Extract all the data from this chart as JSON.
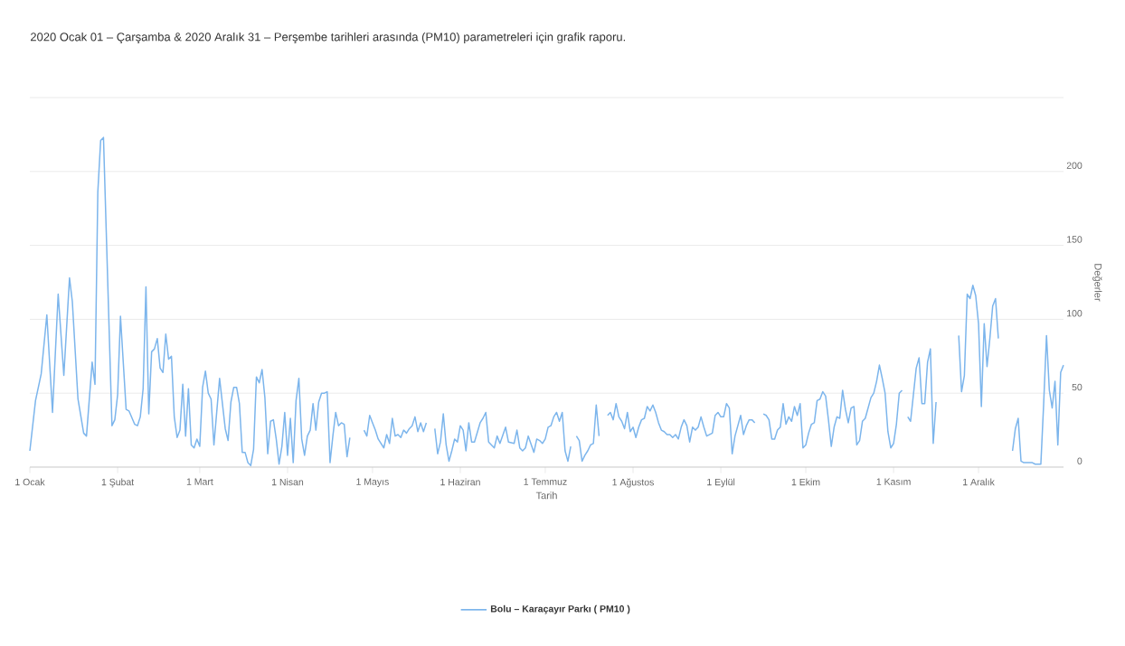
{
  "chart_data": {
    "type": "line",
    "title": "2020 Ocak 01 – Çarşamba & 2020 Aralık 31 – Perşembe tarihleri arasında (PM10) parametreleri için grafik raporu.",
    "xlabel": "Tarih",
    "ylabel": "Değerler",
    "x": [
      "2020-01-01",
      "2020-01-03",
      "2020-01-05",
      "2020-01-07",
      "2020-01-09",
      "2020-01-11",
      "2020-01-13",
      "2020-01-15",
      "2020-01-16",
      "2020-01-18",
      "2020-01-20",
      "2020-01-21",
      "2020-01-23",
      "2020-01-24",
      "2020-01-25",
      "2020-01-26",
      "2020-01-27",
      "2020-01-30",
      "2020-01-31",
      "2020-02-01",
      "2020-02-02",
      "2020-02-04",
      "2020-02-05",
      "2020-02-07",
      "2020-02-08",
      "2020-02-09",
      "2020-02-10",
      "2020-02-11",
      "2020-02-12",
      "2020-02-13",
      "2020-02-14",
      "2020-02-15",
      "2020-02-16",
      "2020-02-17",
      "2020-02-18",
      "2020-02-19",
      "2020-02-20",
      "2020-02-21",
      "2020-02-22",
      "2020-02-23",
      "2020-02-24",
      "2020-02-25",
      "2020-02-26",
      "2020-02-27",
      "2020-02-28",
      "2020-02-29",
      "2020-03-01",
      "2020-03-02",
      "2020-03-03",
      "2020-03-04",
      "2020-03-05",
      "2020-03-06",
      "2020-03-08",
      "2020-03-10",
      "2020-03-11",
      "2020-03-12",
      "2020-03-13",
      "2020-03-14",
      "2020-03-15",
      "2020-03-16",
      "2020-03-17",
      "2020-03-18",
      "2020-03-19",
      "2020-03-20",
      "2020-03-21",
      "2020-03-22",
      "2020-03-23",
      "2020-03-24",
      "2020-03-25",
      "2020-03-26",
      "2020-03-27",
      "2020-03-28",
      "2020-03-29",
      "2020-03-30",
      "2020-03-31",
      "2020-04-01",
      "2020-04-02",
      "2020-04-03",
      "2020-04-04",
      "2020-04-05",
      "2020-04-06",
      "2020-04-07",
      "2020-04-08",
      "2020-04-09",
      "2020-04-10",
      "2020-04-11",
      "2020-04-12",
      "2020-04-13",
      "2020-04-14",
      "2020-04-15",
      "2020-04-16",
      "2020-04-17",
      "2020-04-18",
      "2020-04-19",
      "2020-04-20",
      "2020-04-21",
      "2020-04-22",
      "2020-04-23",
      "2020-04-25",
      "2020-04-28",
      "2020-04-29",
      "2020-04-30",
      "2020-05-01",
      "2020-05-02",
      "2020-05-03",
      "2020-05-05",
      "2020-05-06",
      "2020-05-07",
      "2020-05-08",
      "2020-05-09",
      "2020-05-10",
      "2020-05-11",
      "2020-05-12",
      "2020-05-13",
      "2020-05-14",
      "2020-05-15",
      "2020-05-16",
      "2020-05-17",
      "2020-05-18",
      "2020-05-19",
      "2020-05-20",
      "2020-05-22",
      "2020-05-23",
      "2020-05-24",
      "2020-05-25",
      "2020-05-26",
      "2020-05-27",
      "2020-05-28",
      "2020-05-29",
      "2020-05-30",
      "2020-05-31",
      "2020-06-01",
      "2020-06-02",
      "2020-06-03",
      "2020-06-04",
      "2020-06-05",
      "2020-06-06",
      "2020-06-08",
      "2020-06-09",
      "2020-06-10",
      "2020-06-11",
      "2020-06-12",
      "2020-06-13",
      "2020-06-14",
      "2020-06-15",
      "2020-06-17",
      "2020-06-18",
      "2020-06-20",
      "2020-06-21",
      "2020-06-22",
      "2020-06-23",
      "2020-06-24",
      "2020-06-25",
      "2020-06-27",
      "2020-06-28",
      "2020-06-29",
      "2020-06-30",
      "2020-07-01",
      "2020-07-02",
      "2020-07-03",
      "2020-07-04",
      "2020-07-05",
      "2020-07-06",
      "2020-07-07",
      "2020-07-08",
      "2020-07-09",
      "2020-07-10",
      "2020-07-11",
      "2020-07-12",
      "2020-07-13",
      "2020-07-14",
      "2020-07-15",
      "2020-07-16",
      "2020-07-17",
      "2020-07-18",
      "2020-07-19",
      "2020-07-20",
      "2020-07-21",
      "2020-07-23",
      "2020-07-24",
      "2020-07-25",
      "2020-07-26",
      "2020-07-27",
      "2020-07-28",
      "2020-07-29",
      "2020-07-30",
      "2020-07-31",
      "2020-08-01",
      "2020-08-02",
      "2020-08-03",
      "2020-08-04",
      "2020-08-05",
      "2020-08-06",
      "2020-08-07",
      "2020-08-08",
      "2020-08-09",
      "2020-08-10",
      "2020-08-11",
      "2020-08-12",
      "2020-08-13",
      "2020-08-14",
      "2020-08-15",
      "2020-08-16",
      "2020-08-17",
      "2020-08-18",
      "2020-08-19",
      "2020-08-20",
      "2020-08-21",
      "2020-08-22",
      "2020-08-23",
      "2020-08-24",
      "2020-08-25",
      "2020-08-26",
      "2020-08-27",
      "2020-08-29",
      "2020-08-30",
      "2020-08-31",
      "2020-09-01",
      "2020-09-02",
      "2020-09-03",
      "2020-09-04",
      "2020-09-05",
      "2020-09-06",
      "2020-09-08",
      "2020-09-09",
      "2020-09-10",
      "2020-09-11",
      "2020-09-12",
      "2020-09-13",
      "2020-09-14",
      "2020-09-16",
      "2020-09-17",
      "2020-09-18",
      "2020-09-19",
      "2020-09-20",
      "2020-09-21",
      "2020-09-22",
      "2020-09-23",
      "2020-09-24",
      "2020-09-25",
      "2020-09-26",
      "2020-09-27",
      "2020-09-28",
      "2020-09-29",
      "2020-09-30",
      "2020-10-01",
      "2020-10-02",
      "2020-10-03",
      "2020-10-04",
      "2020-10-05",
      "2020-10-06",
      "2020-10-07",
      "2020-10-08",
      "2020-10-09",
      "2020-10-10",
      "2020-10-11",
      "2020-10-12",
      "2020-10-13",
      "2020-10-14",
      "2020-10-15",
      "2020-10-16",
      "2020-10-17",
      "2020-10-18",
      "2020-10-19",
      "2020-10-20",
      "2020-10-21",
      "2020-10-22",
      "2020-10-24",
      "2020-10-25",
      "2020-10-26",
      "2020-10-27",
      "2020-10-28",
      "2020-10-29",
      "2020-10-30",
      "2020-10-31",
      "2020-11-01",
      "2020-11-02",
      "2020-11-03",
      "2020-11-04",
      "2020-11-05",
      "2020-11-06",
      "2020-11-07",
      "2020-11-08",
      "2020-11-09",
      "2020-11-10",
      "2020-11-11",
      "2020-11-12",
      "2020-11-13",
      "2020-11-14",
      "2020-11-15",
      "2020-11-16",
      "2020-11-17",
      "2020-11-24",
      "2020-11-25",
      "2020-11-26",
      "2020-11-27",
      "2020-11-28",
      "2020-11-29",
      "2020-11-30",
      "2020-12-01",
      "2020-12-02",
      "2020-12-03",
      "2020-12-04",
      "2020-12-05",
      "2020-12-06",
      "2020-12-07",
      "2020-12-08",
      "2020-12-09",
      "2020-12-13",
      "2020-12-14",
      "2020-12-15",
      "2020-12-16",
      "2020-12-17",
      "2020-12-18",
      "2020-12-19",
      "2020-12-20",
      "2020-12-21",
      "2020-12-22",
      "2020-12-23",
      "2020-12-24",
      "2020-12-25",
      "2020-12-26",
      "2020-12-27",
      "2020-12-28",
      "2020-12-29",
      "2020-12-30",
      "2020-12-31"
    ],
    "series": [
      {
        "name": "Bolu – Karaçayır Parkı ( PM10 )",
        "color": "#7cb5ec",
        "values": [
          11,
          45,
          63,
          103,
          37,
          117,
          62,
          128,
          112,
          46,
          23,
          21,
          71,
          56,
          186,
          221,
          223,
          28,
          32,
          49,
          102,
          39,
          38,
          29,
          28,
          34,
          53,
          122,
          36,
          78,
          80,
          87,
          67,
          64,
          90,
          73,
          75,
          34,
          20,
          25,
          56,
          21,
          53,
          15,
          13,
          19,
          14,
          54,
          65,
          50,
          46,
          15,
          60,
          26,
          18,
          44,
          54,
          54,
          43,
          10,
          10,
          3,
          1,
          12,
          61,
          57,
          66,
          47,
          9,
          31,
          32,
          19,
          2,
          14,
          37,
          8,
          33,
          3,
          45,
          60,
          19,
          8,
          21,
          25,
          43,
          25,
          44,
          50,
          50,
          51,
          3,
          21,
          37,
          28,
          30,
          29,
          7,
          20,
          null,
          25,
          21,
          35,
          30,
          25,
          19,
          13,
          22,
          16,
          33,
          21,
          22,
          20,
          25,
          23,
          26,
          28,
          34,
          24,
          30,
          24,
          30,
          null,
          26,
          9,
          17,
          36,
          15,
          4,
          11,
          19,
          17,
          28,
          25,
          11,
          30,
          17,
          17,
          30,
          33,
          37,
          17,
          15,
          13,
          21,
          16,
          27,
          17,
          16,
          25,
          13,
          11,
          13,
          21,
          10,
          19,
          18,
          16,
          19,
          27,
          28,
          34,
          37,
          31,
          37,
          11,
          4,
          14,
          null,
          21,
          18,
          4,
          8,
          11,
          15,
          16,
          42,
          21,
          null,
          35,
          37,
          32,
          43,
          34,
          31,
          26,
          37,
          24,
          27,
          20,
          27,
          32,
          33,
          41,
          38,
          42,
          37,
          30,
          25,
          24,
          22,
          22,
          20,
          22,
          19,
          27,
          32,
          28,
          17,
          27,
          25,
          27,
          34,
          27,
          21,
          23,
          35,
          37,
          34,
          34,
          43,
          40,
          9,
          21,
          35,
          22,
          28,
          32,
          32,
          30,
          null,
          36,
          35,
          32,
          19,
          19,
          25,
          27,
          43,
          29,
          34,
          31,
          41,
          35,
          43,
          13,
          15,
          23,
          29,
          30,
          45,
          46,
          51,
          48,
          32,
          14,
          27,
          34,
          33,
          52,
          39,
          30,
          40,
          41,
          15,
          18,
          31,
          33,
          47,
          50,
          58,
          69,
          60,
          50,
          24,
          13,
          16,
          29,
          50,
          52,
          null,
          34,
          31,
          49,
          67,
          74,
          43,
          43,
          71,
          80,
          16,
          44,
          null,
          89,
          51,
          62,
          117,
          114,
          123,
          116,
          97,
          41,
          97,
          68,
          87,
          109,
          114,
          87,
          null,
          11,
          26,
          33,
          4,
          3,
          3,
          3,
          3,
          2,
          2,
          2,
          43,
          89,
          52,
          40,
          58,
          15,
          64,
          69
        ]
      }
    ],
    "xlim": [
      "2020-01-01",
      "2020-12-31"
    ],
    "xticks": [
      {
        "value": "2020-01-01",
        "label": "1 Ocak"
      },
      {
        "value": "2020-02-01",
        "label": "1 Şubat"
      },
      {
        "value": "2020-03-01",
        "label": "1 Mart"
      },
      {
        "value": "2020-04-01",
        "label": "1 Nisan"
      },
      {
        "value": "2020-05-01",
        "label": "1 Mayıs"
      },
      {
        "value": "2020-06-01",
        "label": "1 Haziran"
      },
      {
        "value": "2020-07-01",
        "label": "1 Temmuz"
      },
      {
        "value": "2020-08-01",
        "label": "1 Ağustos"
      },
      {
        "value": "2020-09-01",
        "label": "1 Eylül"
      },
      {
        "value": "2020-10-01",
        "label": "1 Ekim"
      },
      {
        "value": "2020-11-01",
        "label": "1 Kasım"
      },
      {
        "value": "2020-12-01",
        "label": "1 Aralık"
      }
    ],
    "ylim": [
      0,
      250
    ],
    "yticks": [
      0,
      50,
      100,
      150,
      200,
      {
        "value": 250,
        "label": null
      }
    ],
    "grid": "y",
    "legend": "bottom",
    "marker": "none",
    "line_style": "solid"
  }
}
